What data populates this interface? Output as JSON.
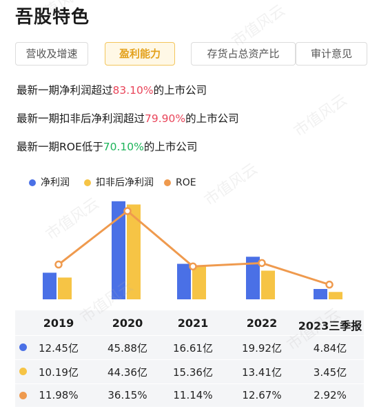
{
  "title": "吾股特色",
  "tabs": [
    {
      "label": "营收及增速",
      "active": false
    },
    {
      "label": "盈利能力",
      "active": true
    },
    {
      "label": "存货占总资产比",
      "active": false
    },
    {
      "label": "审计意见",
      "active": false
    }
  ],
  "stats": [
    {
      "prefix": "最新一期净利润超过",
      "value": "83.10%",
      "suffix": "的上市公司",
      "color": "#e9455a"
    },
    {
      "prefix": "最新一期扣非后净利润超过",
      "value": "79.90%",
      "suffix": "的上市公司",
      "color": "#e9455a"
    },
    {
      "prefix": "最新一期ROE低于",
      "value": "70.10%",
      "suffix": "的上市公司",
      "color": "#1db45a"
    }
  ],
  "watermark": "市值风云",
  "chart_data": {
    "type": "bar",
    "categories": [
      "2019",
      "2020",
      "2021",
      "2022",
      "2023三季报"
    ],
    "series": [
      {
        "name": "净利润",
        "kind": "bar",
        "color": "#4a70e6",
        "values": [
          12.45,
          45.88,
          16.61,
          19.92,
          4.84
        ],
        "labels": [
          "12.45亿",
          "45.88亿",
          "16.61亿",
          "19.92亿",
          "4.84亿"
        ],
        "unit": "亿"
      },
      {
        "name": "扣非后净利润",
        "kind": "bar",
        "color": "#f6c445",
        "values": [
          10.19,
          44.36,
          15.36,
          13.41,
          3.45
        ],
        "labels": [
          "10.19亿",
          "44.36亿",
          "15.36亿",
          "13.41亿",
          "3.45亿"
        ],
        "unit": "亿"
      },
      {
        "name": "ROE",
        "kind": "line",
        "color": "#ef9a4e",
        "values": [
          11.98,
          36.15,
          11.14,
          12.67,
          2.92
        ],
        "labels": [
          "11.98%",
          "36.15%",
          "11.14%",
          "12.67%",
          "2.92%"
        ],
        "unit": "%"
      }
    ],
    "legend_position": "top-left",
    "grid": false
  }
}
